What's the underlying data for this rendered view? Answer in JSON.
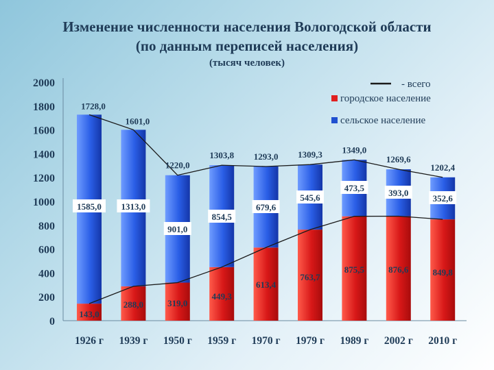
{
  "chart_data": {
    "type": "bar",
    "title_line1": "Изменение численности населения Вологодской области",
    "title_line2": "(по данным переписей населения)",
    "subtitle": "(тысяч человек)",
    "categories": [
      "1926 г",
      "1939 г",
      "1950 г",
      "1959 г",
      "1970 г",
      "1979 г",
      "1989 г",
      "2002 г",
      "2010 г"
    ],
    "stacked": true,
    "series": [
      {
        "name": "городское население",
        "color": "#e02020",
        "values": [
          143.0,
          288.0,
          319.0,
          449.3,
          613.4,
          763.7,
          875.5,
          876.6,
          849.8
        ],
        "labels": [
          "143,0",
          "288,0",
          "319,0",
          "449,3",
          "613,4",
          "763,7",
          "875,5",
          "876,6",
          "849,8"
        ]
      },
      {
        "name": "сельское население",
        "color": "#2050d0",
        "values": [
          1585.0,
          1313.0,
          901.0,
          854.5,
          679.6,
          545.6,
          473.5,
          393.0,
          352.6
        ],
        "labels": [
          "1585,0",
          "1313,0",
          "901,0",
          "854,5",
          "679,6",
          "545,6",
          "473,5",
          "393,0",
          "352,6"
        ]
      }
    ],
    "total": {
      "name": "- всего",
      "values": [
        1728.0,
        1601.0,
        1220.0,
        1303.8,
        1293.0,
        1309.3,
        1349.0,
        1269.6,
        1202.4
      ],
      "labels": [
        "1728,0",
        "1601,0",
        "1220,0",
        "1303,8",
        "1293,0",
        "1309,3",
        "1349,0",
        "1269,6",
        "1202,4"
      ]
    },
    "yticks": [
      "0",
      "200",
      "400",
      "600",
      "800",
      "1000",
      "1200",
      "1400",
      "1600",
      "1800",
      "2000"
    ],
    "ylim": [
      0,
      2000
    ],
    "legend_position": "top-right",
    "grid": false
  }
}
